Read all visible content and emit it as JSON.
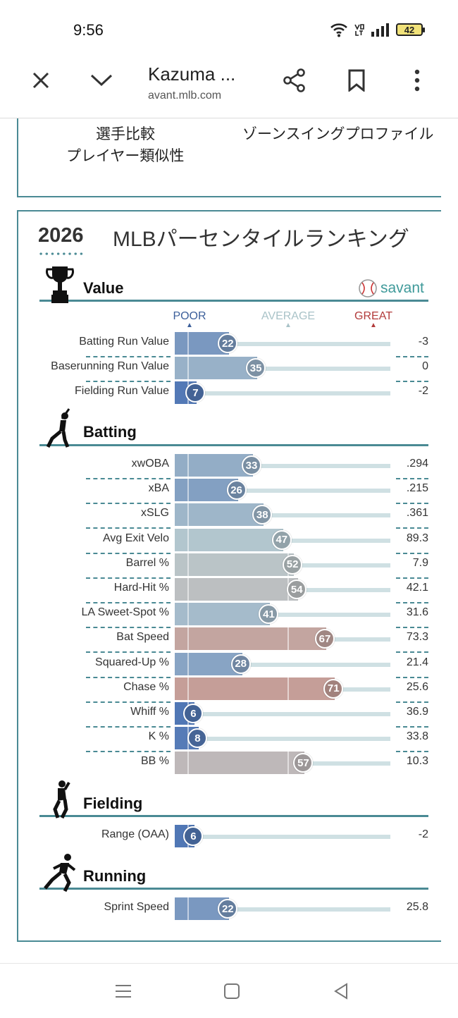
{
  "status": {
    "time": "9:56",
    "battery": "42"
  },
  "browser": {
    "title": "Kazuma ...",
    "url": "avant.mlb.com"
  },
  "prev_section": {
    "links": [
      "選手比較",
      "ゾーンスイングプロファイル",
      "プレイヤー類似性"
    ]
  },
  "card": {
    "year": "2026",
    "title": "MLBパーセンタイルランキング",
    "brand": "savant",
    "scale": {
      "poor": "POOR",
      "average": "AVERAGE",
      "great": "GREAT"
    },
    "colors": {
      "poor": "#3c66b0",
      "average": "#b8cbd0",
      "great": "#d3705f",
      "accent": "#4a8a94"
    },
    "sections": [
      {
        "name": "Value",
        "icon": "trophy-icon",
        "rows": [
          {
            "label": "Batting Run Value",
            "pct": 22,
            "value": "-3"
          },
          {
            "label": "Baserunning Run Value",
            "pct": 35,
            "value": "0"
          },
          {
            "label": "Fielding Run Value",
            "pct": 7,
            "value": "-2"
          }
        ]
      },
      {
        "name": "Batting",
        "icon": "batter-icon",
        "rows": [
          {
            "label": "xwOBA",
            "pct": 33,
            "value": ".294"
          },
          {
            "label": "xBA",
            "pct": 26,
            "value": ".215"
          },
          {
            "label": "xSLG",
            "pct": 38,
            "value": ".361"
          },
          {
            "label": "Avg Exit Velo",
            "pct": 47,
            "value": "89.3"
          },
          {
            "label": "Barrel %",
            "pct": 52,
            "value": "7.9"
          },
          {
            "label": "Hard-Hit %",
            "pct": 54,
            "value": "42.1"
          },
          {
            "label": "LA Sweet-Spot %",
            "pct": 41,
            "value": "31.6"
          },
          {
            "label": "Bat Speed",
            "pct": 67,
            "value": "73.3"
          },
          {
            "label": "Squared-Up %",
            "pct": 28,
            "value": "21.4"
          },
          {
            "label": "Chase %",
            "pct": 71,
            "value": "25.6"
          },
          {
            "label": "Whiff %",
            "pct": 6,
            "value": "36.9"
          },
          {
            "label": "K %",
            "pct": 8,
            "value": "33.8"
          },
          {
            "label": "BB %",
            "pct": 57,
            "value": "10.3"
          }
        ]
      },
      {
        "name": "Fielding",
        "icon": "fielder-icon",
        "rows": [
          {
            "label": "Range (OAA)",
            "pct": 6,
            "value": "-2"
          }
        ]
      },
      {
        "name": "Running",
        "icon": "runner-icon",
        "rows": [
          {
            "label": "Sprint Speed",
            "pct": 22,
            "value": "25.8"
          }
        ]
      }
    ]
  }
}
